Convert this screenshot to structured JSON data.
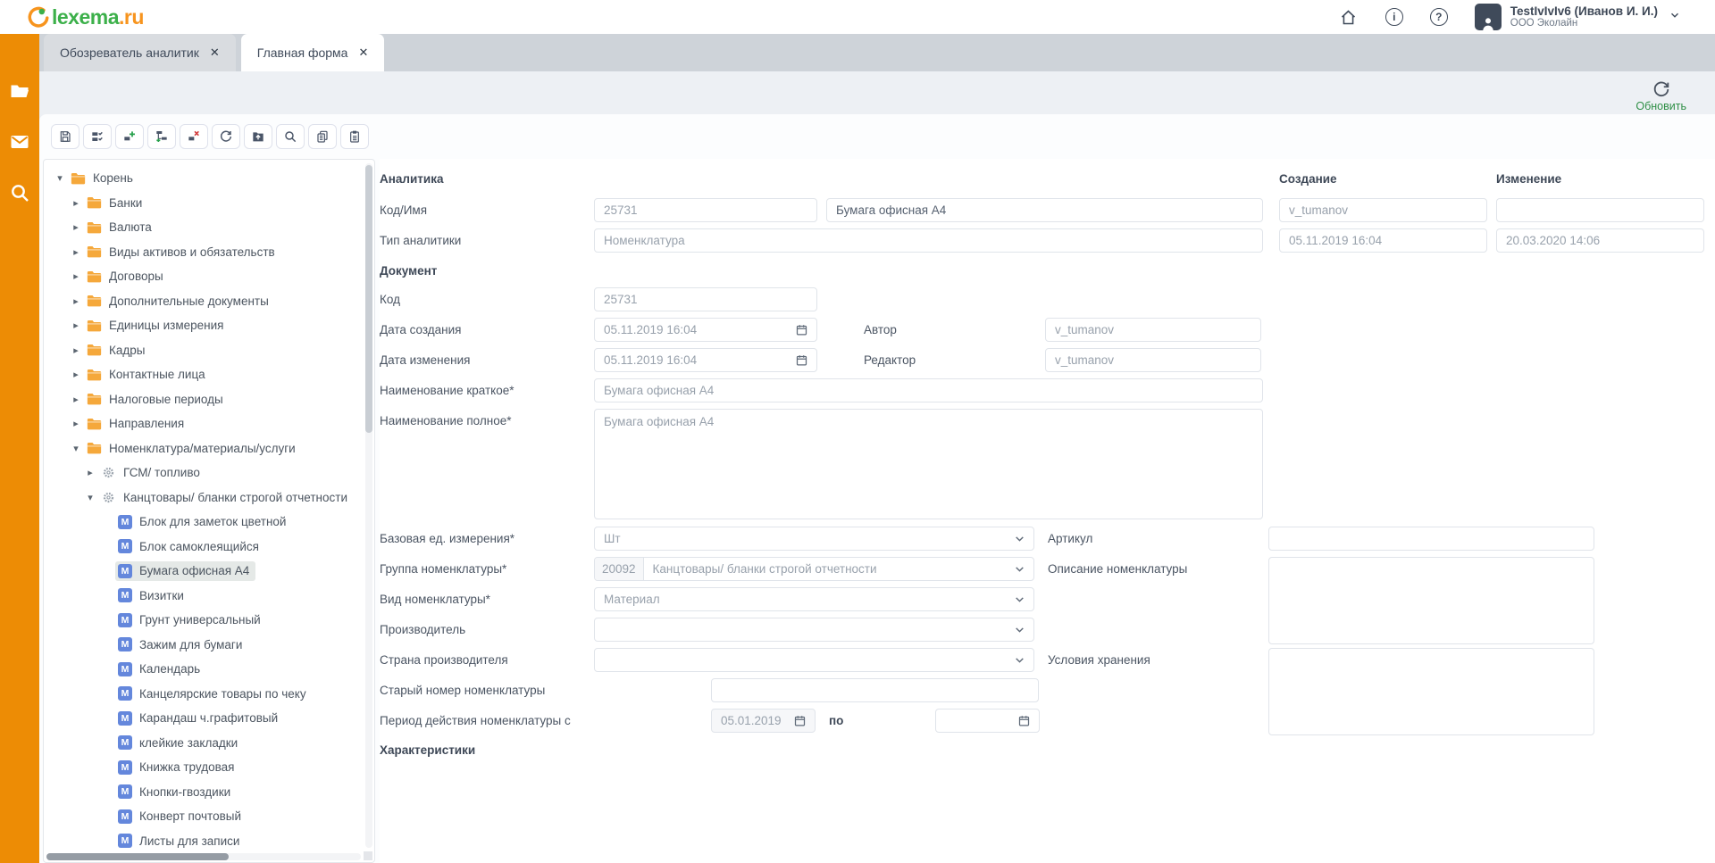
{
  "colors": {
    "accent_orange": "#ed8c05",
    "logo_green": "#3cb04a",
    "logo_orange": "#f7941e",
    "refresh_green": "#2f8f46",
    "selected_bg": "#e5e9e7",
    "material_blue": "#6487dc",
    "icon_slate": "#4a5568"
  },
  "header": {
    "logo_main": "lexema",
    "logo_suffix": ".ru",
    "user_name": "TestIvIvIv6 (Иванов И. И.)",
    "user_company": "ООО Эколайн",
    "icons": [
      "home-icon",
      "info-icon",
      "help-icon"
    ]
  },
  "rail": {
    "icons": [
      "folder-icon",
      "mail-icon",
      "search-icon"
    ]
  },
  "tabs": [
    {
      "label": "Обозреватель аналитик",
      "active": false
    },
    {
      "label": "Главная форма",
      "active": true
    }
  ],
  "ui": {
    "close_glyph": "✕",
    "arrow_open": "▾",
    "arrow_closed": "▸",
    "material_glyph": "M"
  },
  "refresh": {
    "label": "Обновить"
  },
  "toolbar": {
    "buttons": [
      "save",
      "batch-check",
      "add-sibling-node",
      "add-child-node",
      "delete-node",
      "refresh",
      "import",
      "search",
      "copy",
      "paste"
    ]
  },
  "tree": {
    "items": [
      {
        "label": "Корень",
        "level": 0,
        "icon": "folder",
        "arrow": "open",
        "selected": false
      },
      {
        "label": "Банки",
        "level": 1,
        "icon": "folder",
        "arrow": "closed",
        "selected": false
      },
      {
        "label": "Валюта",
        "level": 1,
        "icon": "folder",
        "arrow": "closed",
        "selected": false
      },
      {
        "label": "Виды активов и обязательств",
        "level": 1,
        "icon": "folder",
        "arrow": "closed",
        "selected": false
      },
      {
        "label": "Договоры",
        "level": 1,
        "icon": "folder",
        "arrow": "closed",
        "selected": false
      },
      {
        "label": "Дополнительные документы",
        "level": 1,
        "icon": "folder",
        "arrow": "closed",
        "selected": false
      },
      {
        "label": "Единицы измерения",
        "level": 1,
        "icon": "folder",
        "arrow": "closed",
        "selected": false
      },
      {
        "label": "Кадры",
        "level": 1,
        "icon": "folder",
        "arrow": "closed",
        "selected": false
      },
      {
        "label": "Контактные лица",
        "level": 1,
        "icon": "folder",
        "arrow": "closed",
        "selected": false
      },
      {
        "label": "Налоговые периоды",
        "level": 1,
        "icon": "folder",
        "arrow": "closed",
        "selected": false
      },
      {
        "label": "Направления",
        "level": 1,
        "icon": "folder",
        "arrow": "closed",
        "selected": false
      },
      {
        "label": "Номенклатура/материалы/услуги",
        "level": 1,
        "icon": "folder",
        "arrow": "open",
        "selected": false
      },
      {
        "label": "ГСМ/ топливо",
        "level": 2,
        "icon": "gear",
        "arrow": "closed",
        "selected": false
      },
      {
        "label": "Канцтовары/ бланки строгой отчетности",
        "level": 2,
        "icon": "gear",
        "arrow": "open",
        "selected": false
      },
      {
        "label": "Блок для заметок цветной",
        "level": 3,
        "icon": "material",
        "arrow": null,
        "selected": false
      },
      {
        "label": "Блок самоклеящийся",
        "level": 3,
        "icon": "material",
        "arrow": null,
        "selected": false
      },
      {
        "label": "Бумага офисная А4",
        "level": 3,
        "icon": "material",
        "arrow": null,
        "selected": true
      },
      {
        "label": "Визитки",
        "level": 3,
        "icon": "material",
        "arrow": null,
        "selected": false
      },
      {
        "label": "Грунт универсальный",
        "level": 3,
        "icon": "material",
        "arrow": null,
        "selected": false
      },
      {
        "label": "Зажим для бумаги",
        "level": 3,
        "icon": "material",
        "arrow": null,
        "selected": false
      },
      {
        "label": "Календарь",
        "level": 3,
        "icon": "material",
        "arrow": null,
        "selected": false
      },
      {
        "label": "Канцелярские товары по чеку",
        "level": 3,
        "icon": "material",
        "arrow": null,
        "selected": false
      },
      {
        "label": "Карандаш ч.графитовый",
        "level": 3,
        "icon": "material",
        "arrow": null,
        "selected": false
      },
      {
        "label": "клейкие закладки",
        "level": 3,
        "icon": "material",
        "arrow": null,
        "selected": false
      },
      {
        "label": "Книжка трудовая",
        "level": 3,
        "icon": "material",
        "arrow": null,
        "selected": false
      },
      {
        "label": "Кнопки-гвоздики",
        "level": 3,
        "icon": "material",
        "arrow": null,
        "selected": false
      },
      {
        "label": "Конверт почтовый",
        "level": 3,
        "icon": "material",
        "arrow": null,
        "selected": false
      },
      {
        "label": "Листы для записи",
        "level": 3,
        "icon": "material",
        "arrow": null,
        "selected": false
      }
    ]
  },
  "form": {
    "sections": {
      "analytics": "Аналитика",
      "creation": "Создание",
      "modification": "Изменение",
      "document": "Документ",
      "characteristics": "Характеристики"
    },
    "fields": {
      "code_name": {
        "label": "Код/Имя",
        "code": "25731",
        "name": "Бумага офисная А4"
      },
      "analytics_type": {
        "label": "Тип аналитики",
        "value": "Номенклатура"
      },
      "created_by": "v_tumanov",
      "created_at": "05.11.2019 16:04",
      "modified_by": "",
      "modified_at": "20.03.2020 14:06",
      "doc_code": {
        "label": "Код",
        "value": "25731"
      },
      "date_created": {
        "label": "Дата создания",
        "value": "05.11.2019 16:04"
      },
      "author": {
        "label": "Автор",
        "value": "v_tumanov"
      },
      "date_modified": {
        "label": "Дата изменения",
        "value": "05.11.2019 16:04"
      },
      "editor": {
        "label": "Редактор",
        "value": "v_tumanov"
      },
      "short_name": {
        "label": "Наименование краткое*",
        "value": "Бумага офисная А4"
      },
      "full_name": {
        "label": "Наименование полное*",
        "value": "Бумага офисная А4"
      },
      "base_unit": {
        "label": "Базовая ед. измерения*",
        "value": "Шт"
      },
      "sku": {
        "label": "Артикул",
        "value": ""
      },
      "group": {
        "label": "Группа номенклатуры*",
        "code": "20092",
        "value": "Канцтовары/ бланки строгой отчетности"
      },
      "description": {
        "label": "Описание номенклатуры",
        "value": ""
      },
      "kind": {
        "label": "Вид номенклатуры*",
        "value": "Материал"
      },
      "manufacturer": {
        "label": "Производитель",
        "value": ""
      },
      "country": {
        "label": "Страна производителя",
        "value": ""
      },
      "storage": {
        "label": "Условия хранения",
        "value": ""
      },
      "old_number": {
        "label": "Старый номер номенклатуры",
        "value": ""
      },
      "period": {
        "label": "Период действия номенклатуры с",
        "from": "05.01.2019",
        "to_label": "по",
        "to": ""
      }
    }
  }
}
